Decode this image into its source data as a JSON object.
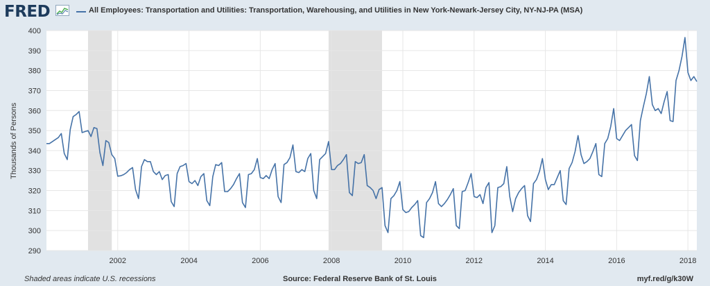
{
  "header": {
    "logo": "FRED",
    "series_title": "All Employees: Transportation and Utilities: Transportation, Warehousing, and Utilities in New York-Newark-Jersey City, NY-NJ-PA (MSA)"
  },
  "footer": {
    "recession_note": "Shaded areas indicate U.S. recessions",
    "source": "Source: Federal Reserve Bank of St. Louis",
    "short_url": "myf.red/g/k30W"
  },
  "colors": {
    "line": "#4572a7",
    "recession": "#e1e1e1",
    "background": "#e1e9f0",
    "plot": "#ffffff",
    "grid": "#e6e6e6"
  },
  "chart_data": {
    "type": "line",
    "title": "All Employees: Transportation and Utilities: Transportation, Warehousing, and Utilities in New York-Newark-Jersey City, NY-NJ-PA (MSA)",
    "ylabel": "Thousands of Persons",
    "xlabel": "",
    "ylim": [
      290,
      400
    ],
    "yticks": [
      290,
      300,
      310,
      320,
      330,
      340,
      350,
      360,
      370,
      380,
      390,
      400
    ],
    "xlim": [
      2000.0,
      2018.25
    ],
    "xticks": [
      "2002",
      "2004",
      "2006",
      "2008",
      "2010",
      "2012",
      "2014",
      "2016",
      "2018"
    ],
    "grid": true,
    "frequency": "monthly",
    "start": "2000-01",
    "recessions": [
      [
        "2001-03",
        "2001-11"
      ],
      [
        "2007-12",
        "2009-06"
      ]
    ],
    "series": [
      {
        "name": "All Employees: Transportation and Utilities: Transportation, Warehousing, and Utilities in New York-Newark-Jersey City, NY-NJ-PA (MSA)",
        "values": [
          343.5,
          343.5,
          344.5,
          345.5,
          346.5,
          348.5,
          338.5,
          335.5,
          350.5,
          357,
          358,
          359.5,
          349,
          349.5,
          350,
          347,
          351.5,
          351,
          339,
          332.5,
          345,
          344,
          338,
          336,
          327.2,
          327.4,
          328,
          329,
          330.5,
          331.5,
          320.5,
          316,
          332,
          335.5,
          334.5,
          334.5,
          329.5,
          328,
          329.5,
          325.5,
          327.5,
          328,
          314.5,
          312,
          328.5,
          332,
          332.5,
          333.5,
          324.5,
          323.5,
          325,
          322.5,
          327,
          328.5,
          315,
          312.5,
          327,
          333,
          332.5,
          334,
          319.5,
          319.5,
          321,
          323,
          326,
          328.5,
          314,
          311.5,
          328,
          328.5,
          330.5,
          336,
          326.5,
          326,
          327.5,
          326,
          330.5,
          333.5,
          317,
          314,
          333,
          334,
          336.5,
          342.8,
          329.5,
          329,
          330.5,
          329.5,
          336,
          338.5,
          320,
          316,
          335.5,
          337,
          338.5,
          344.5,
          330.5,
          330.5,
          332.5,
          333.5,
          335.5,
          338,
          319,
          317.5,
          334.5,
          333.5,
          334,
          338,
          322.5,
          321.5,
          320,
          316,
          320.5,
          321.5,
          302.5,
          299,
          316,
          317.5,
          320,
          324.5,
          310.5,
          309,
          309.5,
          311.5,
          313,
          315,
          297.5,
          296.5,
          314,
          316,
          319,
          324.5,
          313.5,
          312,
          313.5,
          315.5,
          318,
          321,
          302.5,
          301,
          319.5,
          320,
          324,
          328.5,
          317,
          316.5,
          318,
          313.5,
          321.5,
          324,
          299,
          302.5,
          321.5,
          322,
          323.5,
          332,
          317,
          309.5,
          316,
          319,
          321,
          322.5,
          307.5,
          304.5,
          323.5,
          325.5,
          329.5,
          336,
          325.5,
          320.5,
          323,
          323,
          326.5,
          330,
          315,
          313,
          331,
          334,
          339.5,
          347.5,
          338,
          333.5,
          334.5,
          336,
          339.5,
          343.5,
          328,
          327,
          343.5,
          346,
          352,
          361,
          346,
          345,
          347.5,
          350,
          351.5,
          353,
          337.5,
          335,
          355,
          362,
          368.5,
          377,
          363,
          360,
          361,
          358.5,
          364.5,
          369.5,
          355,
          354.5,
          375,
          380,
          387,
          396.5,
          379,
          375,
          377,
          374.5
        ]
      }
    ]
  }
}
